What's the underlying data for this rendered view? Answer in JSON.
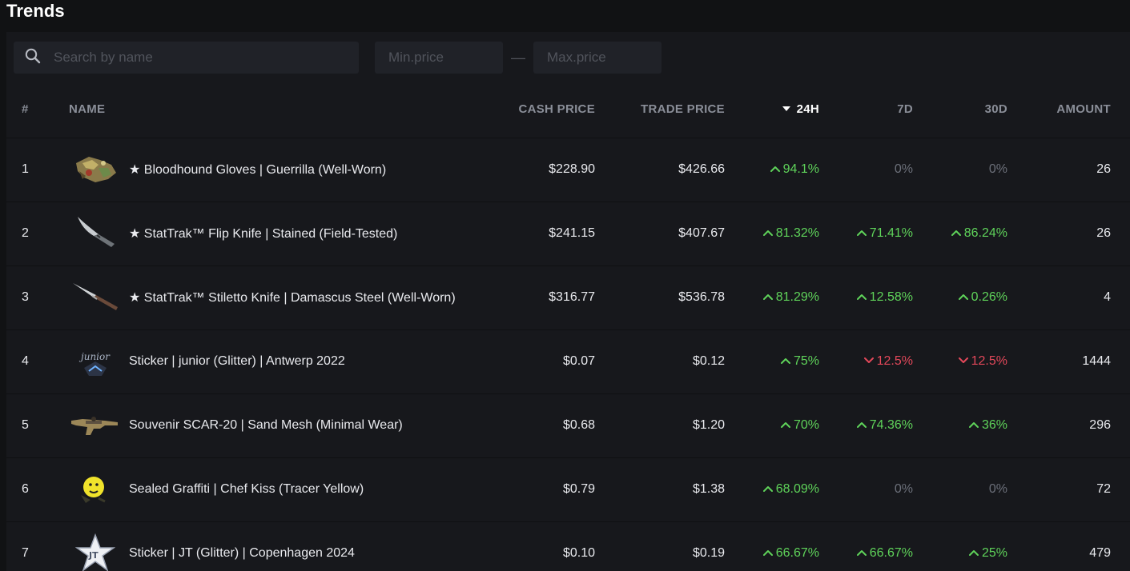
{
  "page": {
    "title": "Trends"
  },
  "filters": {
    "search_placeholder": "Search by name",
    "min_price_placeholder": "Min.price",
    "max_price_placeholder": "Max.price"
  },
  "table": {
    "columns": {
      "rank": "#",
      "name": "NAME",
      "cash_price": "CASH PRICE",
      "trade_price": "TRADE PRICE",
      "h24": "24H",
      "d7": "7D",
      "d30": "30D",
      "amount": "AMOUNT"
    },
    "sorted_column": "24H",
    "rows": [
      {
        "rank": "1",
        "icon": "bloodhound-gloves-icon",
        "name": "★ Bloodhound Gloves | Guerrilla (Well-Worn)",
        "cash_price": "$228.90",
        "trade_price": "$426.66",
        "h24": "94.1%",
        "h24_dir": "up",
        "d7": "0%",
        "d7_dir": "flat",
        "d30": "0%",
        "d30_dir": "flat",
        "amount": "26"
      },
      {
        "rank": "2",
        "icon": "flip-knife-icon",
        "name": "★ StatTrak™ Flip Knife | Stained (Field-Tested)",
        "cash_price": "$241.15",
        "trade_price": "$407.67",
        "h24": "81.32%",
        "h24_dir": "up",
        "d7": "71.41%",
        "d7_dir": "up",
        "d30": "86.24%",
        "d30_dir": "up",
        "amount": "26"
      },
      {
        "rank": "3",
        "icon": "stiletto-knife-icon",
        "name": "★ StatTrak™ Stiletto Knife | Damascus Steel (Well-Worn)",
        "cash_price": "$316.77",
        "trade_price": "$536.78",
        "h24": "81.29%",
        "h24_dir": "up",
        "d7": "12.58%",
        "d7_dir": "up",
        "d30": "0.26%",
        "d30_dir": "up",
        "amount": "4"
      },
      {
        "rank": "4",
        "icon": "sticker-junior-icon",
        "name": "Sticker | junior (Glitter) | Antwerp 2022",
        "cash_price": "$0.07",
        "trade_price": "$0.12",
        "h24": "75%",
        "h24_dir": "up",
        "d7": "12.5%",
        "d7_dir": "down",
        "d30": "12.5%",
        "d30_dir": "down",
        "amount": "1444"
      },
      {
        "rank": "5",
        "icon": "scar-20-rifle-icon",
        "name": "Souvenir SCAR-20 | Sand Mesh (Minimal Wear)",
        "cash_price": "$0.68",
        "trade_price": "$1.20",
        "h24": "70%",
        "h24_dir": "up",
        "d7": "74.36%",
        "d7_dir": "up",
        "d30": "36%",
        "d30_dir": "up",
        "amount": "296"
      },
      {
        "rank": "6",
        "icon": "graffiti-chef-kiss-icon",
        "name": "Sealed Graffiti | Chef Kiss (Tracer Yellow)",
        "cash_price": "$0.79",
        "trade_price": "$1.38",
        "h24": "68.09%",
        "h24_dir": "up",
        "d7": "0%",
        "d7_dir": "flat",
        "d30": "0%",
        "d30_dir": "flat",
        "amount": "72"
      },
      {
        "rank": "7",
        "icon": "sticker-jt-icon",
        "name": "Sticker | JT (Glitter) | Copenhagen 2024",
        "cash_price": "$0.10",
        "trade_price": "$0.19",
        "h24": "66.67%",
        "h24_dir": "up",
        "d7": "66.67%",
        "d7_dir": "up",
        "d30": "25%",
        "d30_dir": "up",
        "amount": "479"
      }
    ]
  },
  "colors": {
    "background": "#111214",
    "panel": "#17181c",
    "input": "#202228",
    "up": "#5fd35a",
    "down": "#e3485a",
    "flat": "#6c707a",
    "header_text": "#8a8e98"
  }
}
